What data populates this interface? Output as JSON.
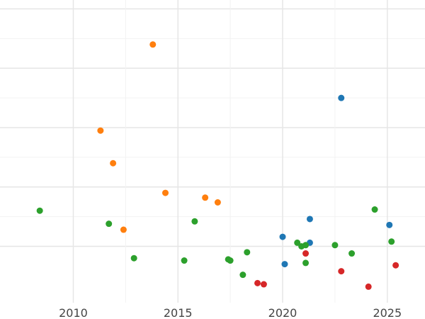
{
  "chart_data": {
    "type": "scatter",
    "title": "",
    "xlabel": "",
    "ylabel": "",
    "xlim": [
      2006.5,
      2026.8
    ],
    "ylim": [
      -0.95,
      4.15
    ],
    "grid": true,
    "x_ticks": [
      2010,
      2015,
      2020,
      2025
    ],
    "x_tick_labels": [
      "2010",
      "2015",
      "2020",
      "2025"
    ],
    "y_gridlines": [
      0,
      1,
      2,
      3,
      4
    ],
    "y_minor_gridlines": [
      0.5,
      1.5,
      2.5,
      3.5
    ],
    "series": [
      {
        "color": "#1f77b4",
        "points": [
          {
            "x": 2022.8,
            "y": 2.5
          },
          {
            "x": 2021.3,
            "y": 0.46
          },
          {
            "x": 2025.1,
            "y": 0.36
          },
          {
            "x": 2020.0,
            "y": 0.16
          },
          {
            "x": 2021.3,
            "y": 0.06
          },
          {
            "x": 2020.1,
            "y": -0.3
          }
        ]
      },
      {
        "color": "#ff7f0e",
        "points": [
          {
            "x": 2013.8,
            "y": 3.4
          },
          {
            "x": 2011.3,
            "y": 1.95
          },
          {
            "x": 2011.9,
            "y": 1.4
          },
          {
            "x": 2014.4,
            "y": 0.9
          },
          {
            "x": 2016.3,
            "y": 0.82
          },
          {
            "x": 2016.9,
            "y": 0.74
          },
          {
            "x": 2012.4,
            "y": 0.28
          }
        ]
      },
      {
        "color": "#2ca02c",
        "points": [
          {
            "x": 2008.4,
            "y": 0.6
          },
          {
            "x": 2024.4,
            "y": 0.62
          },
          {
            "x": 2011.7,
            "y": 0.38
          },
          {
            "x": 2015.8,
            "y": 0.42
          },
          {
            "x": 2025.2,
            "y": 0.08
          },
          {
            "x": 2020.7,
            "y": 0.06
          },
          {
            "x": 2020.9,
            "y": 0.0
          },
          {
            "x": 2021.1,
            "y": 0.02
          },
          {
            "x": 2022.5,
            "y": 0.02
          },
          {
            "x": 2018.3,
            "y": -0.1
          },
          {
            "x": 2023.3,
            "y": -0.12
          },
          {
            "x": 2012.9,
            "y": -0.2
          },
          {
            "x": 2015.3,
            "y": -0.24
          },
          {
            "x": 2017.4,
            "y": -0.22
          },
          {
            "x": 2017.5,
            "y": -0.24
          },
          {
            "x": 2021.1,
            "y": -0.28
          },
          {
            "x": 2018.1,
            "y": -0.48
          }
        ]
      },
      {
        "color": "#d62728",
        "points": [
          {
            "x": 2021.1,
            "y": -0.12
          },
          {
            "x": 2025.4,
            "y": -0.32
          },
          {
            "x": 2022.8,
            "y": -0.42
          },
          {
            "x": 2018.8,
            "y": -0.62
          },
          {
            "x": 2019.1,
            "y": -0.64
          },
          {
            "x": 2024.1,
            "y": -0.68
          }
        ]
      }
    ]
  }
}
